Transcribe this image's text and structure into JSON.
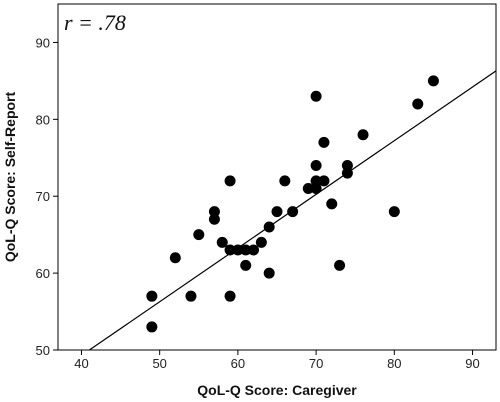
{
  "chart_data": {
    "type": "scatter",
    "annotation": "r = .78",
    "xlabel": "QoL-Q Score: Caregiver",
    "ylabel": "QoL-Q Score: Self-Report",
    "xlim": [
      37,
      93
    ],
    "ylim": [
      50,
      95
    ],
    "xticks": [
      40,
      50,
      60,
      70,
      80,
      90
    ],
    "yticks": [
      50,
      60,
      70,
      80,
      90
    ],
    "grid": false,
    "legend": "none",
    "point_color": "#000000",
    "line_color": "#000000",
    "fit_line": {
      "x1": 37,
      "y1": 47.2,
      "x2": 93,
      "y2": 86.3
    },
    "points": [
      {
        "x": 49,
        "y": 57
      },
      {
        "x": 49,
        "y": 53
      },
      {
        "x": 52,
        "y": 62
      },
      {
        "x": 54,
        "y": 57
      },
      {
        "x": 55,
        "y": 65
      },
      {
        "x": 57,
        "y": 68
      },
      {
        "x": 57,
        "y": 67
      },
      {
        "x": 58,
        "y": 64
      },
      {
        "x": 59,
        "y": 72
      },
      {
        "x": 59,
        "y": 63
      },
      {
        "x": 59,
        "y": 57
      },
      {
        "x": 60,
        "y": 63
      },
      {
        "x": 61,
        "y": 63
      },
      {
        "x": 61,
        "y": 61
      },
      {
        "x": 62,
        "y": 63
      },
      {
        "x": 63,
        "y": 64
      },
      {
        "x": 64,
        "y": 66
      },
      {
        "x": 64,
        "y": 60
      },
      {
        "x": 65,
        "y": 68
      },
      {
        "x": 66,
        "y": 72
      },
      {
        "x": 67,
        "y": 68
      },
      {
        "x": 69,
        "y": 71
      },
      {
        "x": 70,
        "y": 83
      },
      {
        "x": 70,
        "y": 74
      },
      {
        "x": 70,
        "y": 72
      },
      {
        "x": 70,
        "y": 71
      },
      {
        "x": 71,
        "y": 77
      },
      {
        "x": 71,
        "y": 72
      },
      {
        "x": 72,
        "y": 69
      },
      {
        "x": 73,
        "y": 61
      },
      {
        "x": 74,
        "y": 74
      },
      {
        "x": 74,
        "y": 73
      },
      {
        "x": 76,
        "y": 78
      },
      {
        "x": 80,
        "y": 68
      },
      {
        "x": 83,
        "y": 82
      },
      {
        "x": 85,
        "y": 85
      }
    ]
  }
}
